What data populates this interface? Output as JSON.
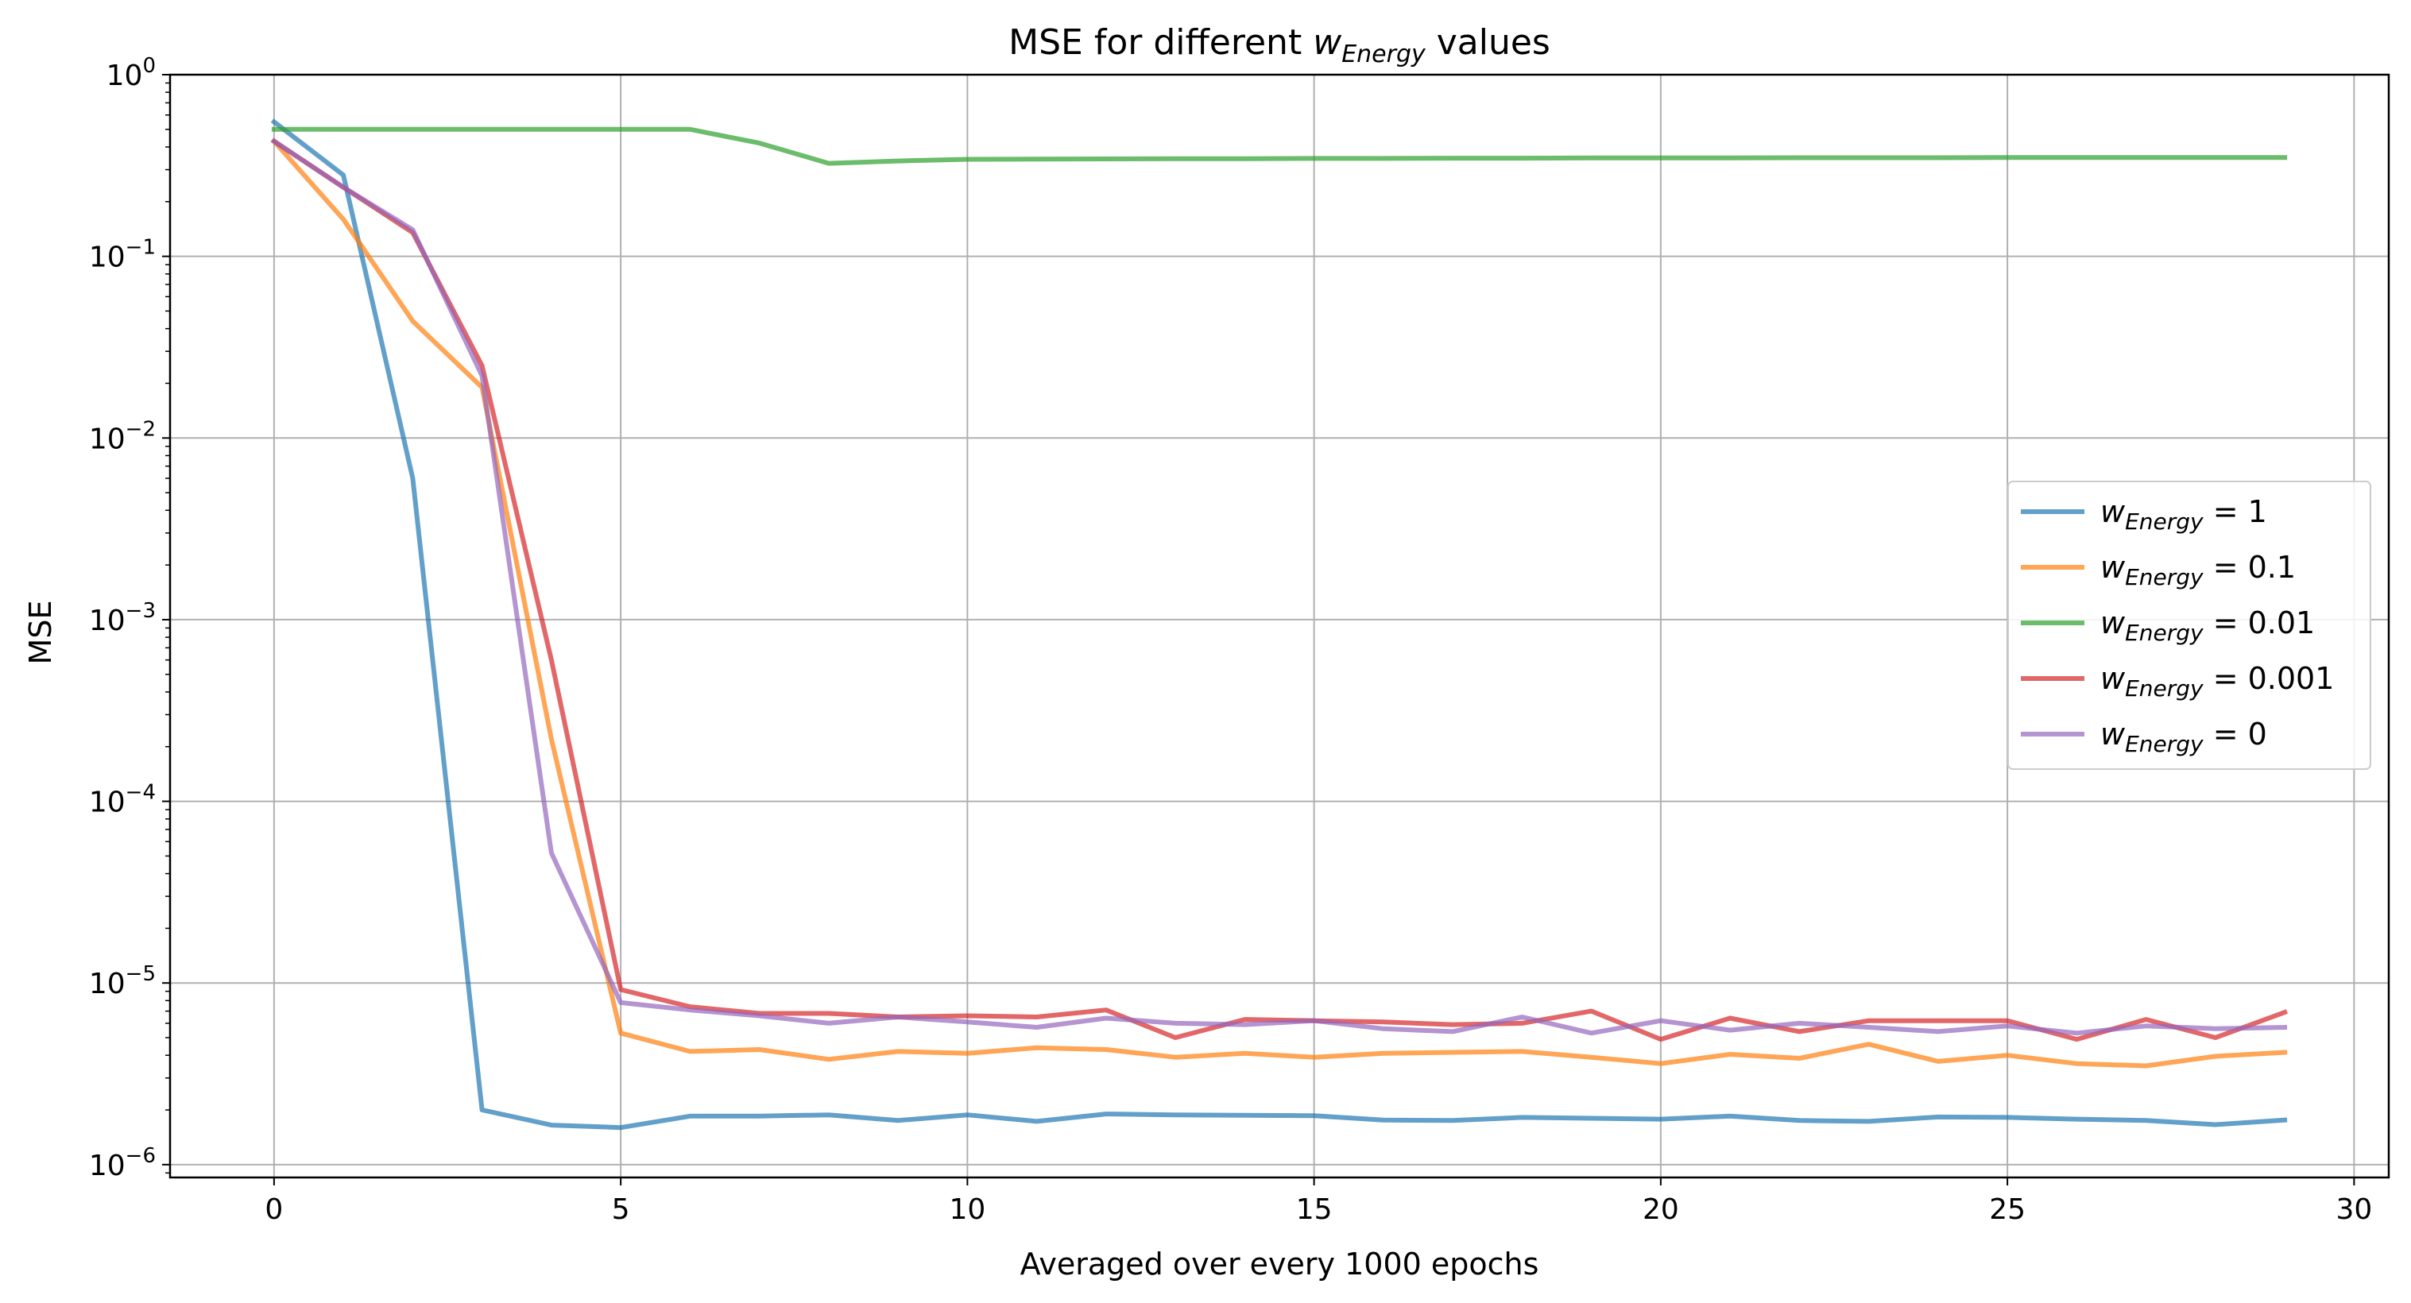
{
  "chart_data": {
    "type": "line",
    "title": "MSE for different w_Energy values",
    "title_parts": {
      "prefix": "MSE for different ",
      "var": "w",
      "sub": "Energy",
      "suffix": " values"
    },
    "xlabel": "Averaged over every 1000 epochs",
    "ylabel": "MSE",
    "xlim": [
      -1.5,
      30.5
    ],
    "ylim": [
      8.5e-07,
      1.0
    ],
    "yscale": "log",
    "grid": true,
    "legend_position": "center-right",
    "x_ticks": [
      0,
      5,
      10,
      15,
      20,
      25,
      30
    ],
    "x_tick_labels": [
      "0",
      "5",
      "10",
      "15",
      "20",
      "25",
      "30"
    ],
    "y_ticks": [
      {
        "value": 1.0,
        "base": "10",
        "exp": "0"
      },
      {
        "value": 0.1,
        "base": "10",
        "exp": "−1"
      },
      {
        "value": 0.01,
        "base": "10",
        "exp": "−2"
      },
      {
        "value": 0.001,
        "base": "10",
        "exp": "−3"
      },
      {
        "value": 0.0001,
        "base": "10",
        "exp": "−4"
      },
      {
        "value": 1e-05,
        "base": "10",
        "exp": "−5"
      },
      {
        "value": 1e-06,
        "base": "10",
        "exp": "−6"
      }
    ],
    "x": [
      0,
      1,
      2,
      3,
      4,
      5,
      6,
      7,
      8,
      9,
      10,
      11,
      12,
      13,
      14,
      15,
      16,
      17,
      18,
      19,
      20,
      21,
      22,
      23,
      24,
      25,
      26,
      27,
      28,
      29
    ],
    "series": [
      {
        "name_var": "w",
        "name_sub": "Energy",
        "name_value": "= 1",
        "color": "#1f77b4",
        "values": [
          0.55,
          0.28,
          0.006,
          2e-06,
          1.65e-06,
          1.6e-06,
          1.85e-06,
          1.85e-06,
          1.88e-06,
          1.75e-06,
          1.88e-06,
          1.73e-06,
          1.9e-06,
          1.88e-06,
          1.87e-06,
          1.86e-06,
          1.76e-06,
          1.75e-06,
          1.82e-06,
          1.8e-06,
          1.78e-06,
          1.85e-06,
          1.75e-06,
          1.73e-06,
          1.83e-06,
          1.82e-06,
          1.78e-06,
          1.75e-06,
          1.66e-06,
          1.76e-06
        ]
      },
      {
        "name_var": "w",
        "name_sub": "Energy",
        "name_value": "= 0.1",
        "color": "#ff7f0e",
        "values": [
          0.43,
          0.16,
          0.044,
          0.019,
          0.00022,
          5.3e-06,
          4.2e-06,
          4.3e-06,
          3.8e-06,
          4.2e-06,
          4.1e-06,
          4.4e-06,
          4.3e-06,
          3.9e-06,
          4.1e-06,
          3.9e-06,
          4.1e-06,
          4.15e-06,
          4.2e-06,
          3.9e-06,
          3.6e-06,
          4.05e-06,
          3.85e-06,
          4.6e-06,
          3.7e-06,
          4e-06,
          3.6e-06,
          3.5e-06,
          3.95e-06,
          4.15e-06
        ]
      },
      {
        "name_var": "w",
        "name_sub": "Energy",
        "name_value": "= 0.01",
        "color": "#2ca02c",
        "values": [
          0.5,
          0.5,
          0.5,
          0.5,
          0.5,
          0.5,
          0.5,
          0.42,
          0.325,
          0.335,
          0.342,
          0.343,
          0.344,
          0.345,
          0.345,
          0.346,
          0.346,
          0.347,
          0.347,
          0.348,
          0.348,
          0.348,
          0.349,
          0.349,
          0.349,
          0.35,
          0.35,
          0.35,
          0.35,
          0.35
        ]
      },
      {
        "name_var": "w",
        "name_sub": "Energy",
        "name_value": "= 0.001",
        "color": "#d62728",
        "values": [
          0.43,
          0.24,
          0.135,
          0.025,
          0.0006,
          9.2e-06,
          7.4e-06,
          6.8e-06,
          6.8e-06,
          6.5e-06,
          6.6e-06,
          6.5e-06,
          7.1e-06,
          5e-06,
          6.3e-06,
          6.2e-06,
          6.1e-06,
          5.9e-06,
          6e-06,
          7e-06,
          4.9e-06,
          6.4e-06,
          5.4e-06,
          6.2e-06,
          6.2e-06,
          6.2e-06,
          4.9e-06,
          6.3e-06,
          5e-06,
          6.9e-06
        ]
      },
      {
        "name_var": "w",
        "name_sub": "Energy",
        "name_value": "= 0",
        "color": "#9467bd",
        "values": [
          0.43,
          0.24,
          0.14,
          0.022,
          5.2e-05,
          7.8e-06,
          7.1e-06,
          6.6e-06,
          6e-06,
          6.5e-06,
          6.1e-06,
          5.7e-06,
          6.4e-06,
          6e-06,
          5.9e-06,
          6.2e-06,
          5.6e-06,
          5.4e-06,
          6.5e-06,
          5.3e-06,
          6.2e-06,
          5.5e-06,
          6e-06,
          5.7e-06,
          5.4e-06,
          5.8e-06,
          5.3e-06,
          5.8e-06,
          5.6e-06,
          5.7e-06
        ]
      }
    ]
  }
}
